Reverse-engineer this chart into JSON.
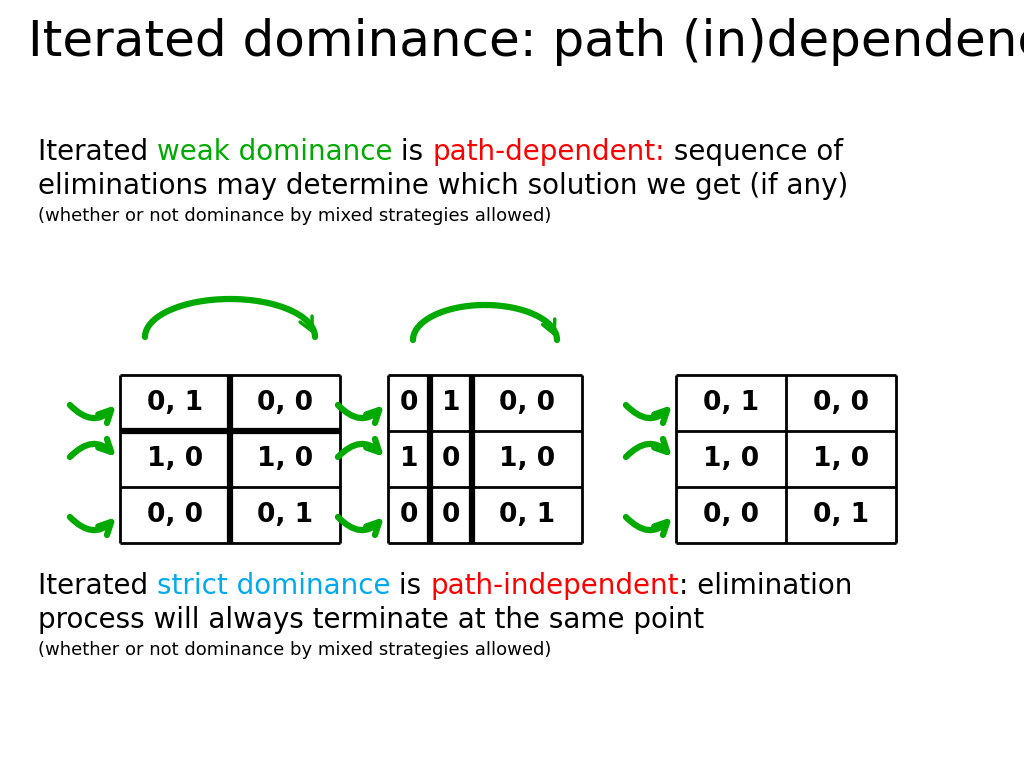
{
  "title": "Iterated dominance: path (in)dependence",
  "bg_color": "#ffffff",
  "green": "#00aa00",
  "red": "#ff0000",
  "blue": "#00aaee",
  "black": "#000000",
  "title_fs": 36,
  "main_fs": 20,
  "small_fs": 13,
  "cell_fs": 19,
  "table1_cells": [
    [
      "0, 1",
      "0, 0"
    ],
    [
      "1, 0",
      "1, 0"
    ],
    [
      "0, 0",
      "0, 1"
    ]
  ],
  "table2_cells": [
    [
      "0",
      "1",
      "0, 0"
    ],
    [
      "1",
      "0",
      "1, 0"
    ],
    [
      "0",
      "0",
      "0, 1"
    ]
  ],
  "table3_cells": [
    [
      "0, 1",
      "0, 0"
    ],
    [
      "1, 0",
      "1, 0"
    ],
    [
      "0, 0",
      "0, 1"
    ]
  ],
  "top_parts": [
    [
      "Iterated ",
      "#000000"
    ],
    [
      "weak dominance",
      "#00aa00"
    ],
    [
      " is ",
      "#000000"
    ],
    [
      "path-dependent:",
      "#ff0000"
    ],
    [
      " sequence of",
      "#000000"
    ]
  ],
  "top_line2": "eliminations may determine which solution we get (if any)",
  "top_line3": "(whether or not dominance by mixed strategies allowed)",
  "bot_parts": [
    [
      "Iterated ",
      "#000000"
    ],
    [
      "strict dominance",
      "#00aaee"
    ],
    [
      " is ",
      "#000000"
    ],
    [
      "path-independent",
      "#ff0000"
    ],
    [
      ": elimination",
      "#000000"
    ]
  ],
  "bot_line2": "process will always terminate at the same point",
  "bot_line3": "(whether or not dominance by mixed strategies allowed)"
}
